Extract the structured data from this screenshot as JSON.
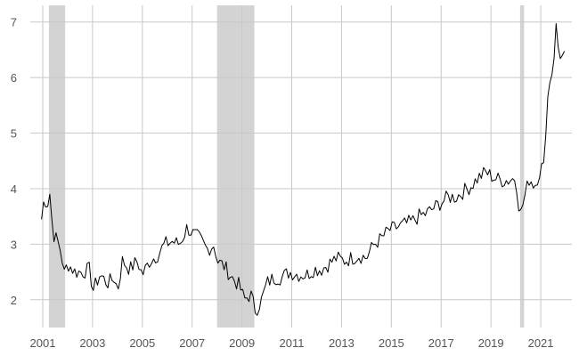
{
  "chart_data": {
    "type": "line",
    "title": "",
    "xlabel": "",
    "ylabel": "",
    "xlim": [
      2000.5,
      2022.25
    ],
    "ylim": [
      1.5,
      7.3
    ],
    "x_ticks": [
      2001,
      2003,
      2005,
      2007,
      2009,
      2011,
      2013,
      2015,
      2017,
      2019,
      2021
    ],
    "x_tick_labels": [
      "2001",
      "2003",
      "2005",
      "2007",
      "2009",
      "2011",
      "2013",
      "2015",
      "2017",
      "2019",
      "2021"
    ],
    "y_ticks": [
      2,
      3,
      4,
      5,
      6,
      7
    ],
    "y_tick_labels": [
      "2",
      "3",
      "4",
      "5",
      "6",
      "7"
    ],
    "grid": true,
    "legend": "none",
    "colors": {
      "line": "#000000",
      "recession": "#d3d3d3",
      "grid": "#c8c8c8",
      "tick_text": "#555555"
    },
    "recessions": [
      {
        "start": 2001.25,
        "end": 2001.9
      },
      {
        "start": 2008.0,
        "end": 2009.5
      },
      {
        "start": 2020.17,
        "end": 2020.33
      }
    ],
    "anchors": [
      [
        2000.95,
        3.45
      ],
      [
        2001.05,
        3.8
      ],
      [
        2001.2,
        3.75
      ],
      [
        2001.3,
        3.95
      ],
      [
        2001.4,
        3.2
      ],
      [
        2001.6,
        3.05
      ],
      [
        2001.75,
        2.85
      ],
      [
        2001.85,
        2.45
      ],
      [
        2002.0,
        2.65
      ],
      [
        2002.3,
        2.5
      ],
      [
        2002.6,
        2.5
      ],
      [
        2002.9,
        2.55
      ],
      [
        2003.0,
        2.15
      ],
      [
        2003.3,
        2.45
      ],
      [
        2003.6,
        2.3
      ],
      [
        2003.9,
        2.4
      ],
      [
        2004.0,
        2.15
      ],
      [
        2004.2,
        2.7
      ],
      [
        2004.5,
        2.55
      ],
      [
        2004.8,
        2.7
      ],
      [
        2005.0,
        2.45
      ],
      [
        2005.3,
        2.7
      ],
      [
        2005.6,
        2.8
      ],
      [
        2005.9,
        3.0
      ],
      [
        2006.2,
        3.05
      ],
      [
        2006.5,
        3.0
      ],
      [
        2006.8,
        3.3
      ],
      [
        2007.0,
        3.2
      ],
      [
        2007.3,
        3.1
      ],
      [
        2007.6,
        2.9
      ],
      [
        2007.9,
        3.0
      ],
      [
        2008.0,
        2.7
      ],
      [
        2008.3,
        2.6
      ],
      [
        2008.6,
        2.4
      ],
      [
        2008.9,
        2.25
      ],
      [
        2009.1,
        2.0
      ],
      [
        2009.35,
        2.1
      ],
      [
        2009.55,
        1.8
      ],
      [
        2009.8,
        2.0
      ],
      [
        2010.0,
        2.3
      ],
      [
        2010.3,
        2.4
      ],
      [
        2010.6,
        2.4
      ],
      [
        2010.9,
        2.5
      ],
      [
        2011.3,
        2.45
      ],
      [
        2011.6,
        2.45
      ],
      [
        2011.9,
        2.55
      ],
      [
        2012.2,
        2.55
      ],
      [
        2012.5,
        2.65
      ],
      [
        2012.8,
        2.75
      ],
      [
        2013.1,
        2.7
      ],
      [
        2013.4,
        2.75
      ],
      [
        2013.7,
        2.8
      ],
      [
        2014.0,
        2.75
      ],
      [
        2014.3,
        3.0
      ],
      [
        2014.6,
        3.1
      ],
      [
        2014.9,
        3.25
      ],
      [
        2015.2,
        3.3
      ],
      [
        2015.5,
        3.35
      ],
      [
        2015.8,
        3.4
      ],
      [
        2016.1,
        3.5
      ],
      [
        2016.4,
        3.55
      ],
      [
        2016.7,
        3.65
      ],
      [
        2017.0,
        3.75
      ],
      [
        2017.3,
        3.85
      ],
      [
        2017.6,
        3.85
      ],
      [
        2017.9,
        3.95
      ],
      [
        2018.2,
        4.05
      ],
      [
        2018.5,
        4.2
      ],
      [
        2018.8,
        4.3
      ],
      [
        2019.1,
        4.2
      ],
      [
        2019.4,
        4.15
      ],
      [
        2019.7,
        4.15
      ],
      [
        2020.0,
        4.2
      ],
      [
        2020.17,
        3.5
      ],
      [
        2020.35,
        3.85
      ],
      [
        2020.55,
        4.2
      ],
      [
        2020.75,
        4.05
      ],
      [
        2020.95,
        4.3
      ],
      [
        2021.15,
        4.5
      ],
      [
        2021.3,
        5.8
      ],
      [
        2021.45,
        6.05
      ],
      [
        2021.55,
        6.4
      ],
      [
        2021.62,
        7.0
      ],
      [
        2021.7,
        6.55
      ],
      [
        2021.8,
        6.3
      ],
      [
        2021.9,
        6.45
      ],
      [
        2022.0,
        6.5
      ]
    ]
  }
}
